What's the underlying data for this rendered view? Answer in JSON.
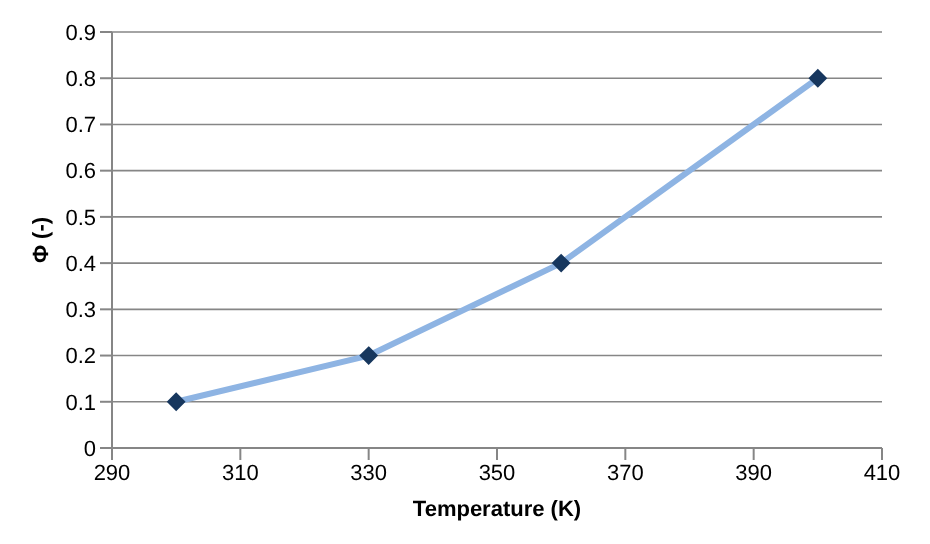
{
  "chart_data": {
    "type": "line",
    "xlabel": "Temperature (K)",
    "ylabel": "Φ (-)",
    "x": [
      300,
      330,
      360,
      400
    ],
    "series": [
      {
        "color": "#8eb4e3",
        "values": [
          0.1,
          0.2,
          0.4,
          0.8
        ]
      }
    ],
    "xlim": [
      290,
      410
    ],
    "xticks": [
      290,
      310,
      330,
      350,
      370,
      390,
      410
    ],
    "ylim": [
      0,
      0.9
    ],
    "yticks": [
      0,
      0.1,
      0.2,
      0.3,
      0.4,
      0.5,
      0.6,
      0.7,
      0.8,
      0.9
    ],
    "grid": "y",
    "marker": "diamond",
    "legend": false
  }
}
